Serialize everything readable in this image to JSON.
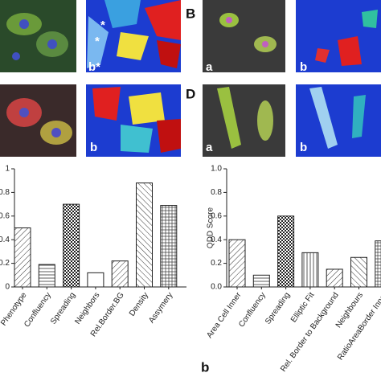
{
  "figure": {
    "panel_labels": [
      "B",
      "D"
    ],
    "image_labels": [
      "*",
      "*",
      "b*",
      "a",
      "b",
      "b",
      "a",
      "b"
    ],
    "chart_label": "b"
  },
  "chart_data": [
    {
      "type": "bar",
      "categories": [
        "Phenotype",
        "Confluency",
        "Spreading",
        "Neighbors",
        "Rel.Border.BG",
        "Density",
        "Assymery"
      ],
      "values": [
        0.5,
        0.19,
        0.7,
        0.12,
        0.22,
        0.88,
        0.69
      ],
      "hatches": [
        "diagonal",
        "horizontal",
        "checker",
        "none",
        "diagonal",
        "antidiagonal",
        "grid"
      ],
      "ylim": [
        0,
        1.0
      ],
      "yticks": [
        0,
        0.2,
        0.4,
        0.6,
        0.8,
        1.0
      ]
    },
    {
      "type": "bar",
      "ylabel": "QDD Score",
      "categories": [
        "Area Cell Inner",
        "Confluency",
        "Spreading",
        "Elliptic Fit",
        "Rel. Border to Background",
        "Neighbours",
        "RatioAreaBorder Inner"
      ],
      "values": [
        0.4,
        0.1,
        0.6,
        0.29,
        0.15,
        0.25,
        0.39
      ],
      "hatches": [
        "diagonal",
        "horizontal",
        "checker",
        "vertical",
        "diagonal",
        "antidiagonal",
        "grid"
      ],
      "ylim": [
        0,
        1.0
      ],
      "yticks": [
        {
          "value": 0,
          "label": "0.0"
        },
        0.2,
        0.4,
        0.6,
        0.8,
        {
          "value": 1.0,
          "label": "1.0"
        }
      ]
    }
  ]
}
